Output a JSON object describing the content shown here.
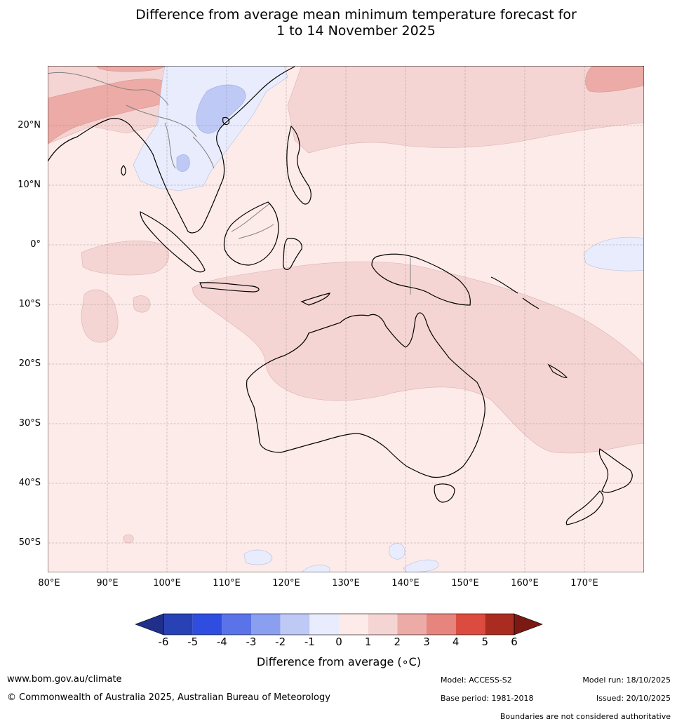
{
  "title_line1": "Difference from average mean minimum temperature forecast for",
  "title_line2": "1 to 14 November 2025",
  "map": {
    "lat_labels": [
      "20°N",
      "10°N",
      "0°",
      "10°S",
      "20°S",
      "30°S",
      "40°S",
      "50°S"
    ],
    "lon_labels": [
      "80°E",
      "90°E",
      "100°E",
      "110°E",
      "120°E",
      "130°E",
      "140°E",
      "150°E",
      "160°E",
      "170°E"
    ],
    "extent": {
      "lon": [
        80,
        180
      ],
      "lat": [
        -55,
        30
      ]
    }
  },
  "legend": {
    "ticks": [
      "-6",
      "-5",
      "-4",
      "-3",
      "-2",
      "-1",
      "0",
      "1",
      "2",
      "3",
      "4",
      "5",
      "6"
    ],
    "colors": [
      "#1f2f8a",
      "#2841b4",
      "#2f4ee0",
      "#5b73e8",
      "#8b9ff0",
      "#bfc9f5",
      "#e8ecfc",
      "#fdebe9",
      "#f5d5d3",
      "#ecaba6",
      "#e6857e",
      "#dc4b40",
      "#aa2c21",
      "#7b1a14"
    ],
    "label": "Difference from average (∘C)"
  },
  "footer": {
    "website": "www.bom.gov.au/climate",
    "copyright": "© Commonwealth of Australia 2025, Australian Bureau of Meteorology",
    "model": "Model: ACCESS-S2",
    "base_period": "Base period: 1981-2018",
    "model_run": "Model run: 18/10/2025",
    "issued": "Issued: 20/10/2025",
    "disclaimer": "Boundaries are not considered authoritative"
  }
}
